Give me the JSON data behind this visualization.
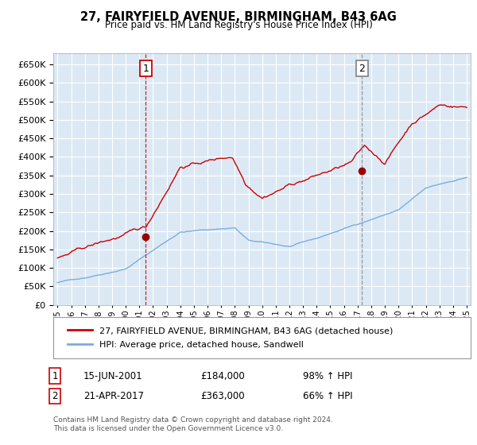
{
  "title": "27, FAIRYFIELD AVENUE, BIRMINGHAM, B43 6AG",
  "subtitle": "Price paid vs. HM Land Registry's House Price Index (HPI)",
  "background_color": "#dce9f5",
  "plot_bg_color": "#dce9f5",
  "outer_bg_color": "#ffffff",
  "ylim": [
    0,
    680000
  ],
  "yticks": [
    0,
    50000,
    100000,
    150000,
    200000,
    250000,
    300000,
    350000,
    400000,
    450000,
    500000,
    550000,
    600000,
    650000
  ],
  "xlim_start": 1994.7,
  "xlim_end": 2025.3,
  "red_line_color": "#cc0000",
  "blue_line_color": "#7aaddc",
  "marker_color": "#990000",
  "vline1_x": 2001.46,
  "vline2_x": 2017.31,
  "sale1_year": 2001.46,
  "sale1_price": 184000,
  "sale2_year": 2017.31,
  "sale2_price": 363000,
  "legend_label_red": "27, FAIRYFIELD AVENUE, BIRMINGHAM, B43 6AG (detached house)",
  "legend_label_blue": "HPI: Average price, detached house, Sandwell",
  "annotation1_label": "1",
  "annotation1_date": "15-JUN-2001",
  "annotation1_price": "£184,000",
  "annotation1_hpi": "98% ↑ HPI",
  "annotation2_label": "2",
  "annotation2_date": "21-APR-2017",
  "annotation2_price": "£363,000",
  "annotation2_hpi": "66% ↑ HPI",
  "footer": "Contains HM Land Registry data © Crown copyright and database right 2024.\nThis data is licensed under the Open Government Licence v3.0."
}
